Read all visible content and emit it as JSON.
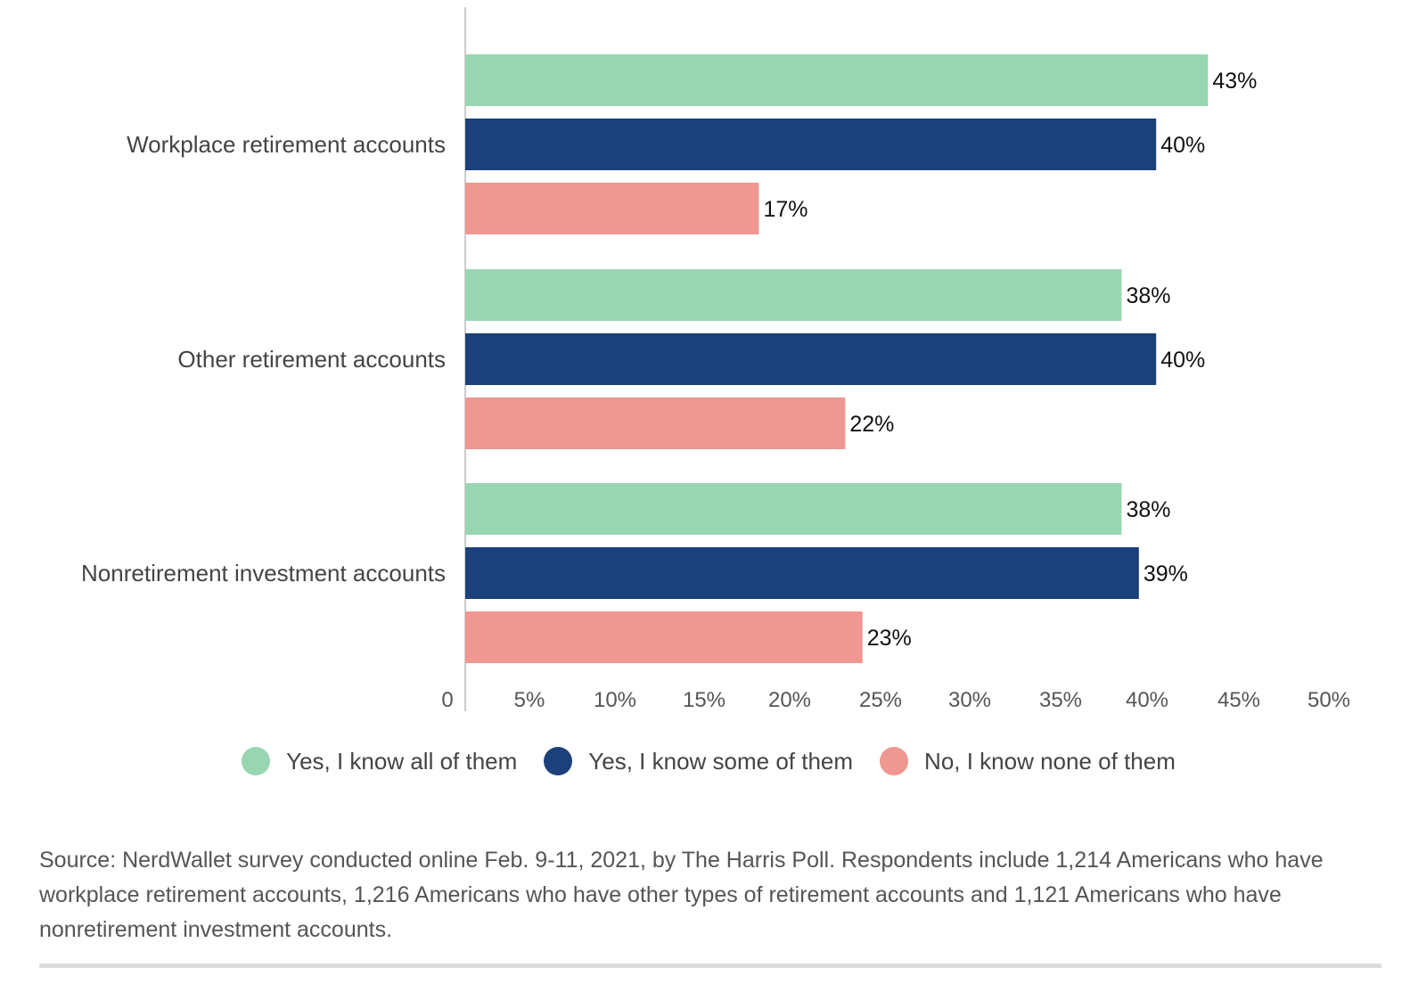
{
  "chart_data": {
    "type": "bar",
    "orientation": "horizontal",
    "categories": [
      "Workplace retirement accounts",
      "Other retirement accounts",
      "Nonretirement investment accounts"
    ],
    "series": [
      {
        "name": "Yes, I know all of them",
        "color": "#98d6b2",
        "values": [
          43,
          38,
          38
        ],
        "labels": [
          "43%",
          "38%",
          "38%"
        ]
      },
      {
        "name": "Yes, I know some of them",
        "color": "#1c4079",
        "values": [
          40,
          40,
          39
        ],
        "labels": [
          "40%",
          "40%",
          "39%"
        ]
      },
      {
        "name": "No, I know none of them",
        "color": "#ef9791",
        "values": [
          17,
          22,
          23
        ],
        "labels": [
          "17%",
          "22%",
          "23%"
        ]
      }
    ],
    "xlim": [
      0,
      50
    ],
    "ticks": [
      "0",
      "5%",
      "10%",
      "15%",
      "20%",
      "25%",
      "30%",
      "35%",
      "40%",
      "45%",
      "50%"
    ],
    "grid": false,
    "legend_position": "bottom"
  },
  "source_text": "Source: NerdWallet survey conducted online Feb. 9-11, 2021, by The Harris Poll. Respondents include 1,214 Americans who have workplace retirement accounts, 1,216 Americans who have other types of retirement accounts and 1,121 Americans who have nonretirement investment accounts."
}
